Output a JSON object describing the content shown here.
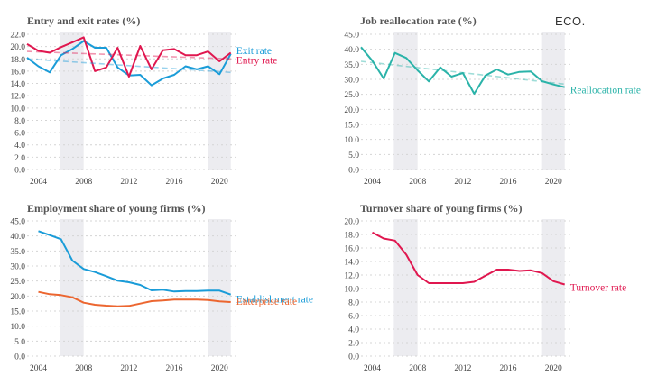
{
  "logo": "ECO.",
  "colors": {
    "exit": "#1a9cd8",
    "entry": "#e0174f",
    "reallocation": "#2bb3a9",
    "establishment": "#1a9cd8",
    "enterprise": "#ec6630",
    "turnover": "#e0174f",
    "recession_band": "#ececf0",
    "grid": "#d4d4d4"
  },
  "chart_data": [
    {
      "id": "entry-exit",
      "type": "line",
      "title": "Entry and exit rates (%)",
      "x_ticks": [
        2004,
        2008,
        2012,
        2016,
        2020
      ],
      "xlim": [
        2003,
        2021.5
      ],
      "ylim": [
        0,
        22
      ],
      "y_ticks": [
        0.0,
        2.0,
        4.0,
        6.0,
        8.0,
        10.0,
        12.0,
        14.0,
        16.0,
        18.0,
        20.0,
        22.0
      ],
      "y_decimals": 1,
      "grid": "horizontal dotted",
      "shaded_periods": [
        [
          2005.9,
          2008
        ],
        [
          2019,
          2021
        ]
      ],
      "series": [
        {
          "name": "Exit rate",
          "color_key": "exit",
          "x": [
            2003,
            2004,
            2005,
            2006,
            2007,
            2008,
            2009,
            2010,
            2011,
            2012,
            2013,
            2014,
            2015,
            2016,
            2017,
            2018,
            2019,
            2020,
            2021
          ],
          "values": [
            18.2,
            16.8,
            15.8,
            18.6,
            19.6,
            20.9,
            19.8,
            19.8,
            16.6,
            15.3,
            15.4,
            13.7,
            14.8,
            15.4,
            16.8,
            16.3,
            16.8,
            15.5,
            18.8
          ]
        },
        {
          "name": "Entry rate",
          "color_key": "entry",
          "x": [
            2003,
            2004,
            2005,
            2006,
            2007,
            2008,
            2009,
            2010,
            2011,
            2012,
            2013,
            2014,
            2015,
            2016,
            2017,
            2018,
            2019,
            2020,
            2021
          ],
          "values": [
            20.4,
            19.3,
            19.0,
            19.9,
            20.7,
            21.5,
            16.0,
            16.6,
            19.8,
            15.1,
            20.1,
            16.3,
            19.4,
            19.6,
            18.6,
            18.6,
            19.2,
            17.6,
            19.0
          ]
        },
        {
          "trend": true,
          "color_key": "entry",
          "x": [
            2003,
            2021
          ],
          "values": [
            19.2,
            18.0
          ]
        },
        {
          "trend": true,
          "color_key": "exit",
          "x": [
            2003,
            2021
          ],
          "values": [
            18.0,
            15.8
          ]
        }
      ]
    },
    {
      "id": "job-reallocation",
      "type": "line",
      "title": "Job reallocation rate (%)",
      "x_ticks": [
        2004,
        2008,
        2012,
        2016,
        2020
      ],
      "xlim": [
        2003,
        2021.5
      ],
      "ylim": [
        0,
        45
      ],
      "y_ticks": [
        0.0,
        5.0,
        10.0,
        15.0,
        20.0,
        25.0,
        30.0,
        35.0,
        40.0,
        45.0
      ],
      "y_decimals": 1,
      "grid": "horizontal dotted",
      "shaded_periods": [
        [
          2005.9,
          2008
        ],
        [
          2019,
          2021
        ]
      ],
      "series": [
        {
          "name": "Reallocation rate",
          "color_key": "reallocation",
          "x": [
            2003,
            2004,
            2005,
            2006,
            2007,
            2008,
            2009,
            2010,
            2011,
            2012,
            2013,
            2014,
            2015,
            2016,
            2017,
            2018,
            2019,
            2020,
            2021
          ],
          "values": [
            40.7,
            36.2,
            30.3,
            38.8,
            37.1,
            33.0,
            29.3,
            34.0,
            30.9,
            32.1,
            25.2,
            31.3,
            33.3,
            31.6,
            32.5,
            32.6,
            29.4,
            28.3,
            27.4
          ]
        },
        {
          "trend": true,
          "color_key": "reallocation",
          "x": [
            2003,
            2021
          ],
          "values": [
            36.0,
            28.4
          ]
        }
      ]
    },
    {
      "id": "employment-share",
      "type": "line",
      "title": "Employment share of young firms (%)",
      "x_ticks": [
        2004,
        2008,
        2012,
        2016,
        2020
      ],
      "xlim": [
        2003,
        2021.5
      ],
      "ylim": [
        0,
        45
      ],
      "y_ticks": [
        0.0,
        5.0,
        10.0,
        15.0,
        20.0,
        25.0,
        30.0,
        35.0,
        40.0,
        45.0
      ],
      "y_decimals": 1,
      "grid": "horizontal dotted",
      "shaded_periods": [
        [
          2005.9,
          2008
        ],
        [
          2019,
          2021
        ]
      ],
      "series": [
        {
          "name": "Establishment rate",
          "color_key": "establishment",
          "x": [
            2004,
            2005,
            2006,
            2007,
            2008,
            2009,
            2010,
            2011,
            2012,
            2013,
            2014,
            2015,
            2016,
            2017,
            2018,
            2019,
            2020,
            2021
          ],
          "values": [
            41.6,
            40.3,
            38.9,
            31.8,
            29.0,
            28.0,
            26.6,
            25.1,
            24.6,
            23.7,
            21.9,
            22.1,
            21.5,
            21.7,
            21.7,
            21.8,
            21.8,
            20.5
          ]
        },
        {
          "name": "Enterprise rate",
          "color_key": "enterprise",
          "x": [
            2004,
            2005,
            2006,
            2007,
            2008,
            2009,
            2010,
            2011,
            2012,
            2013,
            2014,
            2015,
            2016,
            2017,
            2018,
            2019,
            2020,
            2021
          ],
          "values": [
            21.4,
            20.6,
            20.3,
            19.6,
            17.8,
            17.1,
            16.8,
            16.6,
            16.7,
            17.5,
            18.3,
            18.5,
            18.8,
            18.8,
            18.8,
            18.7,
            18.2,
            18.0
          ]
        }
      ]
    },
    {
      "id": "turnover-share",
      "type": "line",
      "title": "Turnover share of young firms (%)",
      "x_ticks": [
        2004,
        2008,
        2012,
        2016,
        2020
      ],
      "xlim": [
        2003,
        2021.5
      ],
      "ylim": [
        0,
        20
      ],
      "y_ticks": [
        0.0,
        2.0,
        4.0,
        6.0,
        8.0,
        10.0,
        12.0,
        14.0,
        16.0,
        18.0,
        20.0
      ],
      "y_decimals": 1,
      "grid": "horizontal dotted",
      "shaded_periods": [
        [
          2005.9,
          2008
        ],
        [
          2019,
          2021
        ]
      ],
      "series": [
        {
          "name": "Turnover rate",
          "color_key": "turnover",
          "x": [
            2004,
            2005,
            2006,
            2007,
            2008,
            2009,
            2010,
            2011,
            2012,
            2013,
            2014,
            2015,
            2016,
            2017,
            2018,
            2019,
            2020,
            2021
          ],
          "values": [
            18.3,
            17.4,
            17.1,
            15.0,
            12.0,
            10.8,
            10.8,
            10.8,
            10.8,
            11.0,
            11.9,
            12.8,
            12.8,
            12.6,
            12.7,
            12.3,
            11.1,
            10.6
          ]
        }
      ]
    }
  ]
}
